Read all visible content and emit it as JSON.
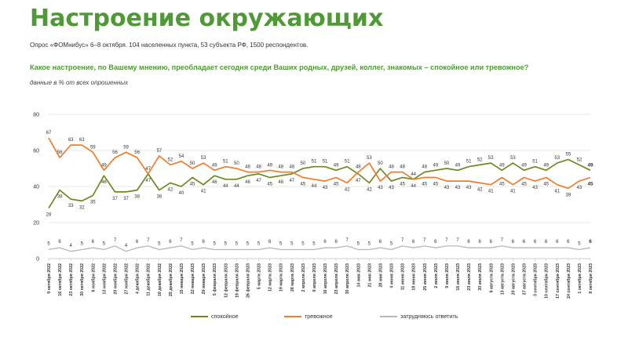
{
  "header": {
    "title": "Настроение окружающих",
    "subtitle": "Опрос «ФОМнибус» 6–8 октября. 104 населенных пункта, 53 субъекта РФ, 1500 респондентов.",
    "question": "Какое настроение, по Вашему мнению, преобладает сегодня среди Ваших родных, друзей, коллег, знакомых – спокойное или тревожное?",
    "note": "данные в % от всех опрошенных"
  },
  "colors": {
    "calm": "#6b8a1e",
    "anxious": "#ef7d2c",
    "undecided": "#b8b8b8",
    "title": "#4f9a36"
  },
  "chart_data": {
    "type": "line",
    "ylim": [
      0,
      80
    ],
    "yticks": [
      0,
      20,
      40,
      60,
      80
    ],
    "grid": true,
    "legend_position": "bottom",
    "x": [
      "9 октября 2022",
      "16 октября 2022",
      "23 октября 2022",
      "30 октября 2022",
      "6 ноября 2022",
      "13 ноября 2022",
      "20 ноября 2022",
      "27 ноября 2022",
      "4 декабря 2022",
      "11 декабря 2022",
      "18 декабря 2022",
      "25 декабря 2022",
      "15 января 2023",
      "22 января 2023",
      "29 января 2023",
      "5 февраля 2023",
      "12 февраля 2023",
      "19 февраля 2023",
      "26 февраля 2023",
      "5 марта 2023",
      "12 марта 2023",
      "19 марта 2023",
      "26 марта 2023",
      "2 апреля 2023",
      "9 апреля 2023",
      "16 апреля 2023",
      "23 апреля 2023",
      "30 апреля 2023",
      "14 мая 2023",
      "21 мая 2023",
      "28 мая 2023",
      "4 июня 2023",
      "11 июня 2023",
      "18 июня 2023",
      "25 июня 2023",
      "2 июля 2023",
      "9 июля 2023",
      "16 июля 2023",
      "23 июля 2023",
      "30 июля 2023",
      "6 августа 2023",
      "13 августа 2023",
      "20 августа 2023",
      "27 августа 2023",
      "3 сентября 2023",
      "10 сентября 2023",
      "17 сентября 2023",
      "24 сентября 2023",
      "1 октября 2023",
      "8 октября 2023"
    ],
    "series": [
      {
        "name": "спокойное",
        "color_key": "calm",
        "values": [
          28,
          38,
          33,
          32,
          35,
          46,
          37,
          37,
          38,
          47,
          38,
          42,
          40,
          45,
          41,
          46,
          44,
          44,
          46,
          47,
          45,
          46,
          47,
          50,
          51,
          51,
          49,
          51,
          47,
          42,
          50,
          43,
          45,
          44,
          48,
          49,
          50,
          49,
          51,
          52,
          53,
          49,
          53,
          49,
          51,
          49,
          53,
          55,
          52,
          49
        ]
      },
      {
        "name": "тревожное",
        "color_key": "anxious",
        "values": [
          67,
          56,
          63,
          63,
          59,
          49,
          56,
          59,
          56,
          47,
          57,
          52,
          54,
          50,
          53,
          49,
          51,
          50,
          48,
          48,
          49,
          48,
          48,
          45,
          44,
          43,
          45,
          42,
          48,
          53,
          43,
          48,
          48,
          44,
          45,
          45,
          43,
          43,
          43,
          42,
          41,
          45,
          41,
          45,
          43,
          45,
          41,
          39,
          43,
          45
        ]
      },
      {
        "name": "затрудняюсь ответить",
        "color_key": "undecided",
        "values": [
          5,
          6,
          4,
          5,
          6,
          5,
          7,
          4,
          6,
          7,
          5,
          6,
          7,
          5,
          6,
          5,
          5,
          5,
          5,
          5,
          6,
          5,
          5,
          5,
          5,
          6,
          6,
          7,
          5,
          5,
          6,
          5,
          7,
          6,
          7,
          6,
          7,
          7,
          6,
          6,
          6,
          7,
          6,
          6,
          6,
          6,
          6,
          6,
          5,
          6
        ]
      }
    ]
  }
}
